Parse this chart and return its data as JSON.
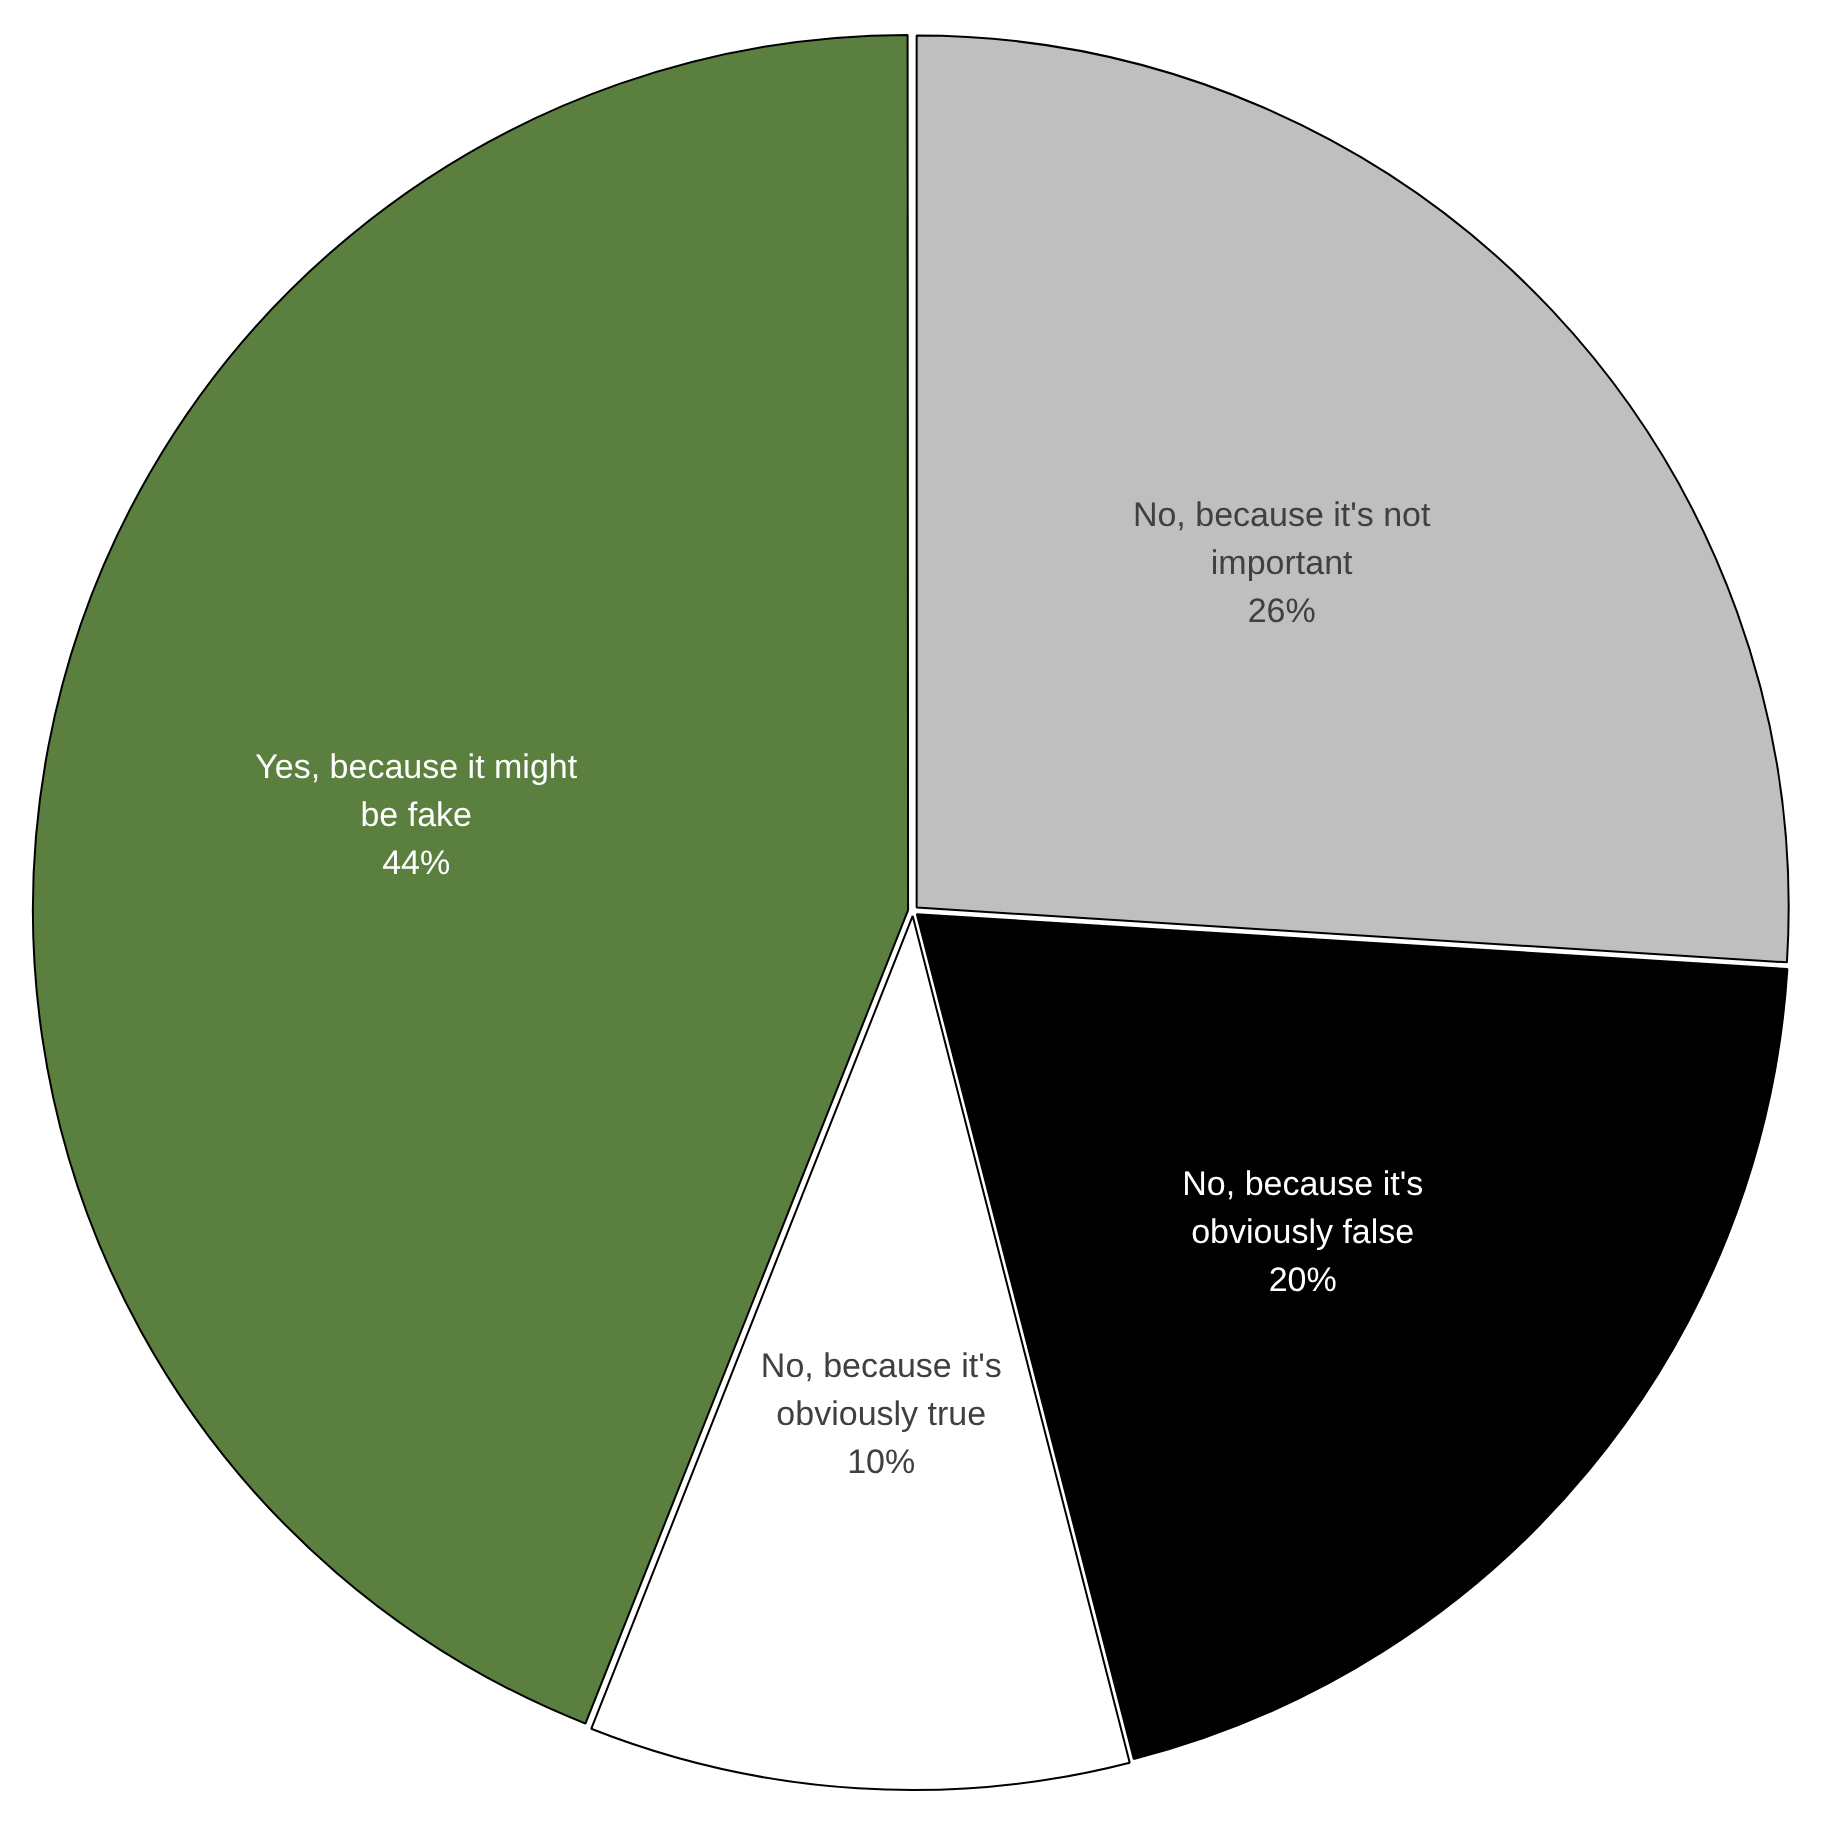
{
  "chart_data": {
    "type": "pie",
    "categories": [
      "No, because it's not important",
      "No, because it's obviously false",
      "No, because it's obviously true",
      "Yes, because it might be fake"
    ],
    "values": [
      26,
      20,
      10,
      44
    ],
    "colors": [
      "#bfbfbf",
      "#000000",
      "#ffffff",
      "#5b7f3e"
    ],
    "value_labels": [
      "26%",
      "20%",
      "10%",
      "44%"
    ],
    "legend": false
  }
}
